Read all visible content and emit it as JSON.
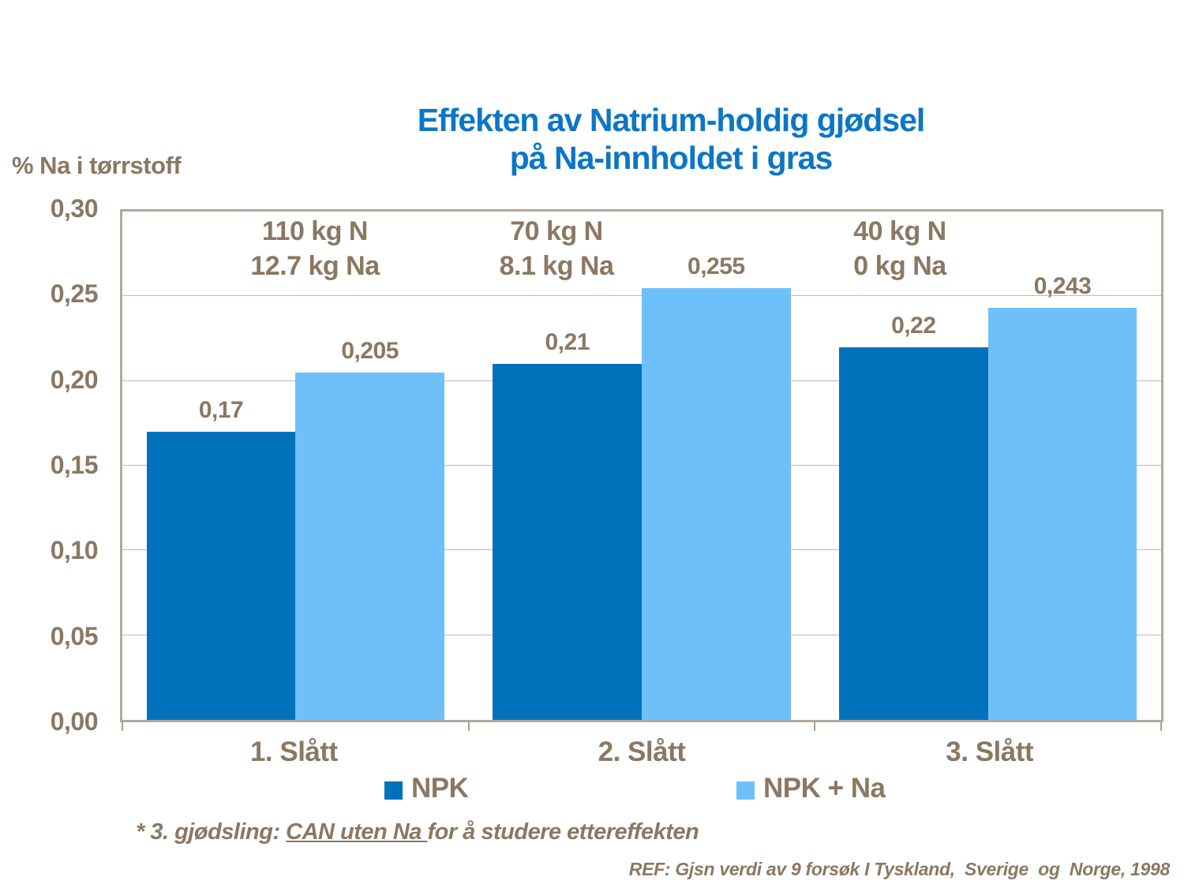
{
  "chart_data": {
    "type": "bar",
    "title": "Effekten av Natrium-holdig gjødsel på Na-innholdet i gras",
    "title_lines": [
      "Effekten av Natrium-holdig gjødsel",
      "på Na-innholdet i gras"
    ],
    "ylabel": "% Na i tørrstoff",
    "ylim": [
      0,
      0.3
    ],
    "ytick_labels": [
      "0,00",
      "0,05",
      "0,10",
      "0,15",
      "0,20",
      "0,25",
      "0,30"
    ],
    "grid": true,
    "legend_position": "bottom",
    "categories": [
      "1. Slått",
      "2. Slått",
      "3. Slått"
    ],
    "series": [
      {
        "name": "NPK",
        "color": "#0072BC",
        "values": [
          0.17,
          0.21,
          0.22
        ],
        "value_labels": [
          "0,17",
          "0,21",
          "0,22"
        ]
      },
      {
        "name": "NPK + Na",
        "color": "#6FC0F8",
        "values": [
          0.205,
          0.255,
          0.243
        ],
        "value_labels": [
          "0,205",
          "0,255",
          "0,243"
        ]
      }
    ],
    "group_annotations": [
      {
        "line1": "110 kg N",
        "line2": "12.7 kg Na"
      },
      {
        "line1": "70 kg N",
        "line2": "8.1 kg Na"
      },
      {
        "line1": "40 kg N",
        "line2": "0 kg Na"
      }
    ]
  },
  "footnote": {
    "prefix": "* 3. gjødsling: ",
    "underlined": "CAN uten Na ",
    "suffix": "for å studere ettereffekten"
  },
  "reference": "REF: Gjsn verdi av 9 forsøk I Tyskland,  Sverige  og  Norge, 1998",
  "colors": {
    "title_blue": "#0C76C6",
    "text_brown": "#8A7862",
    "frame": "#B2A89B",
    "gridline": "#C2B9AB",
    "bar_npk": "#0072BC",
    "bar_npk_na": "#6FC0F8"
  }
}
